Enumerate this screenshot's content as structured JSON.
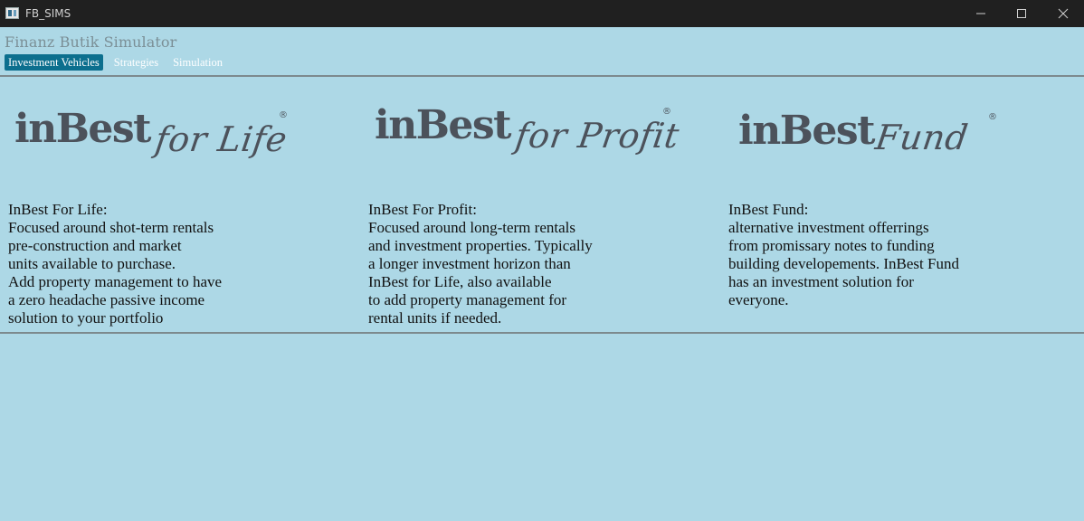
{
  "window": {
    "title": "FB_SIMS"
  },
  "app": {
    "title": "Finanz Butik Simulator"
  },
  "nav": {
    "tabs": [
      {
        "label": "Investment Vehicles",
        "active": true
      },
      {
        "label": "Strategies",
        "active": false
      },
      {
        "label": "Simulation",
        "active": false
      }
    ]
  },
  "colors": {
    "background": "#add8e6",
    "titlebar": "#202020",
    "active_tab": "#0c6f8e",
    "logo": "#4c525b"
  },
  "vehicles": [
    {
      "logo_main": "inBest",
      "logo_script": "for Life",
      "logo_mark": "®",
      "heading": "InBest For Life:",
      "lines": [
        "Focused around shot-term rentals",
        "pre-construction and market",
        "units available to purchase.",
        "Add property management to have",
        "a zero headache passive income",
        "solution to your portfolio"
      ]
    },
    {
      "logo_main": "inBest",
      "logo_script": "for Profit",
      "logo_mark": "®",
      "heading": "InBest For Profit:",
      "lines": [
        "Focused around long-term rentals",
        "and investment properties. Typically",
        "a longer investment horizon than",
        "InBest for Life, also available",
        "to add property management for",
        "rental units if needed."
      ]
    },
    {
      "logo_main": "inBest",
      "logo_script": "Fund",
      "logo_mark": "®",
      "heading": "InBest Fund:",
      "lines": [
        "alternative investment offerrings",
        "from promissary notes to funding",
        "building developements. InBest Fund",
        "has an investment solution for",
        "everyone."
      ]
    }
  ]
}
